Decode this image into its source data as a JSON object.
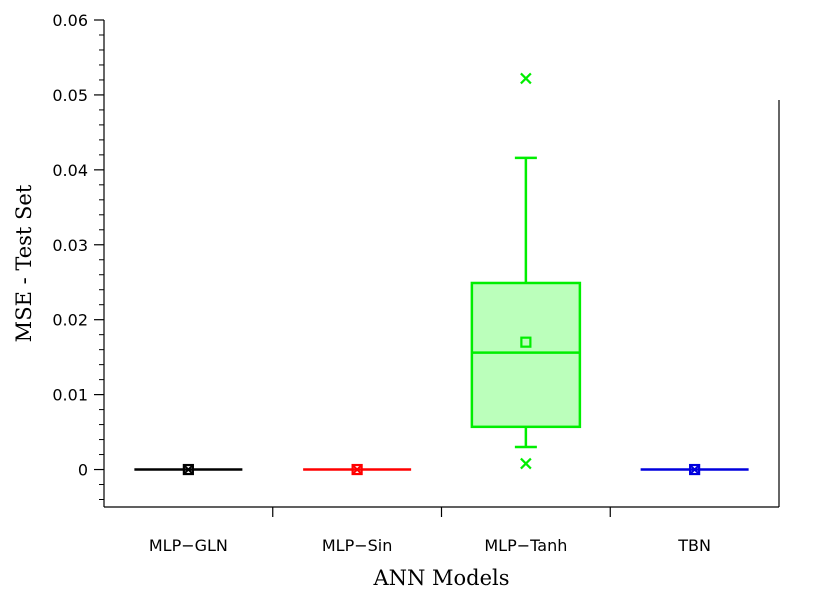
{
  "chart_data": {
    "type": "box",
    "xlabel": "ANN Models",
    "ylabel": "MSE - Test Set",
    "ylim": [
      -0.005,
      0.06
    ],
    "yticks": [
      0,
      0.01,
      0.02,
      0.03,
      0.04,
      0.05,
      0.06
    ],
    "ytick_labels": [
      "0",
      "0.01",
      "0.02",
      "0.03",
      "0.04",
      "0.05",
      "0.06"
    ],
    "grid": false,
    "categories": [
      "MLP−GLN",
      "MLP−Sin",
      "MLP−Tanh",
      "TBN"
    ],
    "boxes": [
      {
        "category": "MLP−GLN",
        "color": "#000000",
        "fill": "#000000",
        "q1": 0.0,
        "median": 0.0,
        "q3": 0.0,
        "whisker_low": 0.0,
        "whisker_high": 0.0,
        "mean": 0.0,
        "outliers": []
      },
      {
        "category": "MLP−Sin",
        "color": "#ff0000",
        "fill": "#ff0000",
        "q1": 0.0,
        "median": 0.0,
        "q3": 0.0,
        "whisker_low": 0.0,
        "whisker_high": 0.0,
        "mean": 0.0,
        "outliers": []
      },
      {
        "category": "MLP−Tanh",
        "color": "#00ee00",
        "fill": "#bbffbb",
        "q1": 0.0057,
        "median": 0.0156,
        "q3": 0.0249,
        "whisker_low": 0.003,
        "whisker_high": 0.0416,
        "mean": 0.017,
        "outliers": [
          0.0522,
          0.0008
        ]
      },
      {
        "category": "TBN",
        "color": "#0000dd",
        "fill": "#0000dd",
        "q1": 0.0,
        "median": 0.0,
        "q3": 0.0,
        "whisker_low": 0.0,
        "whisker_high": 0.0,
        "mean": 0.0,
        "outliers": []
      }
    ]
  }
}
